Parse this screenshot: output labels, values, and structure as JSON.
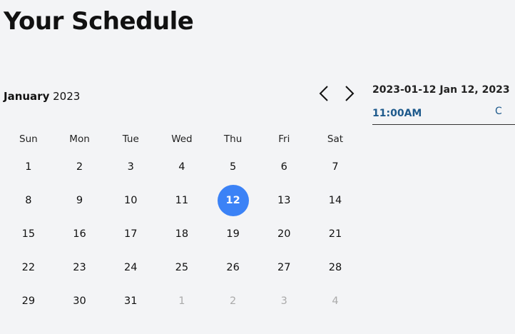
{
  "title": "Your Schedule",
  "calendar": {
    "month": "January",
    "year": "2023",
    "weekdays": [
      "Sun",
      "Mon",
      "Tue",
      "Wed",
      "Thu",
      "Fri",
      "Sat"
    ],
    "days": [
      {
        "d": "1"
      },
      {
        "d": "2"
      },
      {
        "d": "3"
      },
      {
        "d": "4"
      },
      {
        "d": "5"
      },
      {
        "d": "6"
      },
      {
        "d": "7"
      },
      {
        "d": "8"
      },
      {
        "d": "9"
      },
      {
        "d": "10"
      },
      {
        "d": "11"
      },
      {
        "d": "12",
        "selected": true
      },
      {
        "d": "13"
      },
      {
        "d": "14"
      },
      {
        "d": "15"
      },
      {
        "d": "16"
      },
      {
        "d": "17"
      },
      {
        "d": "18"
      },
      {
        "d": "19"
      },
      {
        "d": "20"
      },
      {
        "d": "21"
      },
      {
        "d": "22"
      },
      {
        "d": "23"
      },
      {
        "d": "24"
      },
      {
        "d": "25"
      },
      {
        "d": "26"
      },
      {
        "d": "27"
      },
      {
        "d": "28"
      },
      {
        "d": "29"
      },
      {
        "d": "30"
      },
      {
        "d": "31"
      },
      {
        "d": "1",
        "outside": true
      },
      {
        "d": "2",
        "outside": true
      },
      {
        "d": "3",
        "outside": true
      },
      {
        "d": "4",
        "outside": true
      }
    ],
    "selected_color": "#3b82f6"
  },
  "panel": {
    "date": "2023-01-12 Jan 12, 2023",
    "slots": [
      {
        "time": "11:00AM",
        "extra": "C"
      }
    ]
  }
}
